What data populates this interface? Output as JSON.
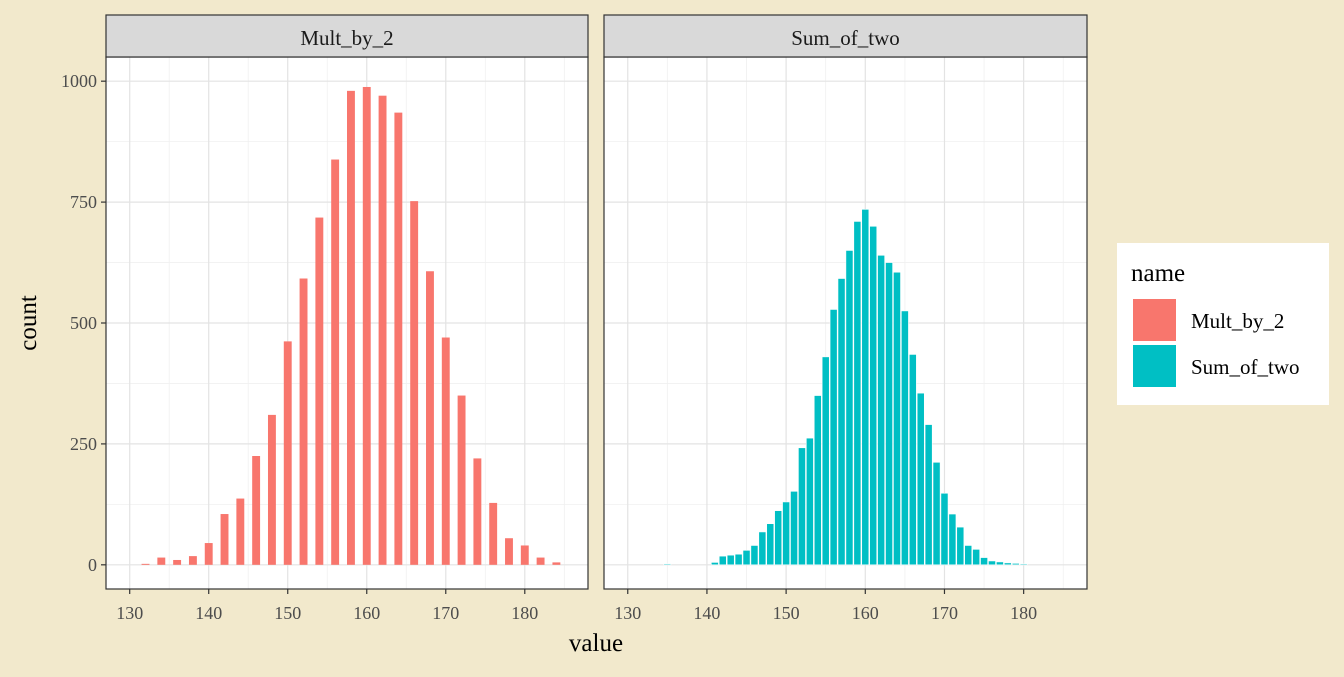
{
  "chart_data": {
    "type": "bar",
    "x_label": "value",
    "y_label": "count",
    "x_lim": [
      127,
      188
    ],
    "y_lim": [
      -50,
      1050
    ],
    "x_ticks": [
      130,
      140,
      150,
      160,
      170,
      180
    ],
    "y_ticks": [
      0,
      250,
      500,
      750,
      1000
    ],
    "grid": true,
    "legend": {
      "title": "name",
      "position": "right",
      "entries": [
        {
          "label": "Mult_by_2",
          "color": "#F8766D"
        },
        {
          "label": "Sum_of_two",
          "color": "#00BFC4"
        }
      ]
    },
    "panels": [
      {
        "strip_label": "Mult_by_2",
        "color": "#F8766D",
        "bar_width": 1.0,
        "x": [
          132,
          134,
          136,
          138,
          140,
          142,
          144,
          146,
          148,
          150,
          152,
          154,
          156,
          158,
          160,
          162,
          164,
          166,
          168,
          170,
          172,
          174,
          176,
          178,
          180,
          182,
          184
        ],
        "values": [
          2,
          15,
          10,
          18,
          45,
          105,
          137,
          225,
          310,
          462,
          592,
          718,
          838,
          980,
          988,
          970,
          935,
          752,
          607,
          470,
          350,
          220,
          128,
          55,
          40,
          15,
          5
        ]
      },
      {
        "strip_label": "Sum_of_two",
        "color": "#00BFC4",
        "bar_width": 0.9,
        "x": [
          135,
          141,
          142,
          143,
          144,
          145,
          146,
          147,
          148,
          149,
          150,
          151,
          152,
          153,
          154,
          155,
          156,
          157,
          158,
          159,
          160,
          161,
          162,
          163,
          164,
          165,
          166,
          167,
          168,
          169,
          170,
          171,
          172,
          173,
          174,
          175,
          176,
          177,
          178,
          179,
          180
        ],
        "values": [
          2,
          5,
          18,
          20,
          22,
          30,
          40,
          68,
          85,
          112,
          130,
          152,
          242,
          262,
          350,
          430,
          528,
          592,
          650,
          710,
          735,
          700,
          640,
          625,
          605,
          525,
          435,
          355,
          290,
          212,
          148,
          105,
          78,
          40,
          32,
          15,
          8,
          6,
          4,
          3,
          2
        ]
      }
    ]
  }
}
